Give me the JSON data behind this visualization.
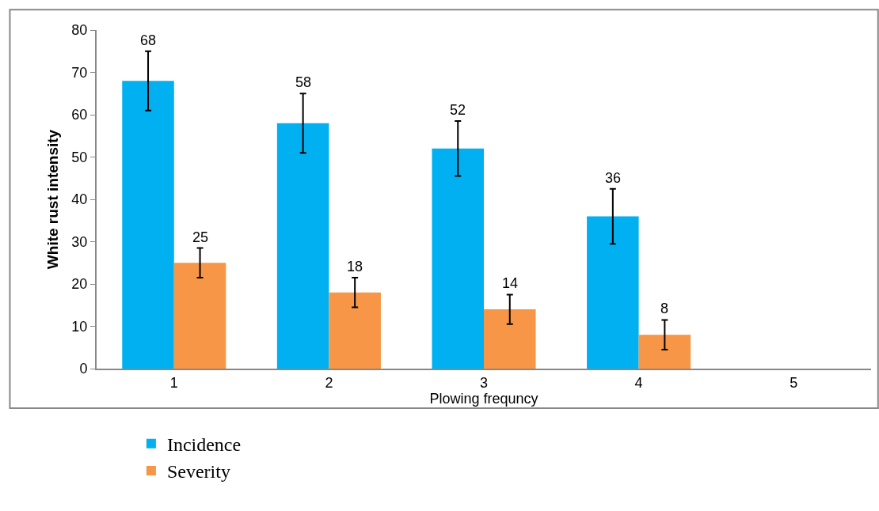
{
  "chart_data": {
    "type": "bar",
    "xlabel": "Plowing frequncy",
    "ylabel": "White rust intensity",
    "categories": [
      "1",
      "2",
      "3",
      "4",
      "5"
    ],
    "series": [
      {
        "name": "Incidence",
        "color": "#00b0f0",
        "values": [
          68,
          58,
          52,
          36,
          null
        ],
        "errors": [
          7,
          7,
          6.5,
          6.5,
          null
        ]
      },
      {
        "name": "Severity",
        "color": "#f79646",
        "values": [
          25,
          18,
          14,
          8,
          null
        ],
        "errors": [
          3.5,
          3.5,
          3.5,
          3.5,
          null
        ]
      }
    ],
    "ylim": [
      0,
      80
    ],
    "yticks": [
      0,
      10,
      20,
      30,
      40,
      50,
      60,
      70,
      80
    ],
    "grid": false,
    "data_labels": true,
    "legend": "bottom left"
  }
}
